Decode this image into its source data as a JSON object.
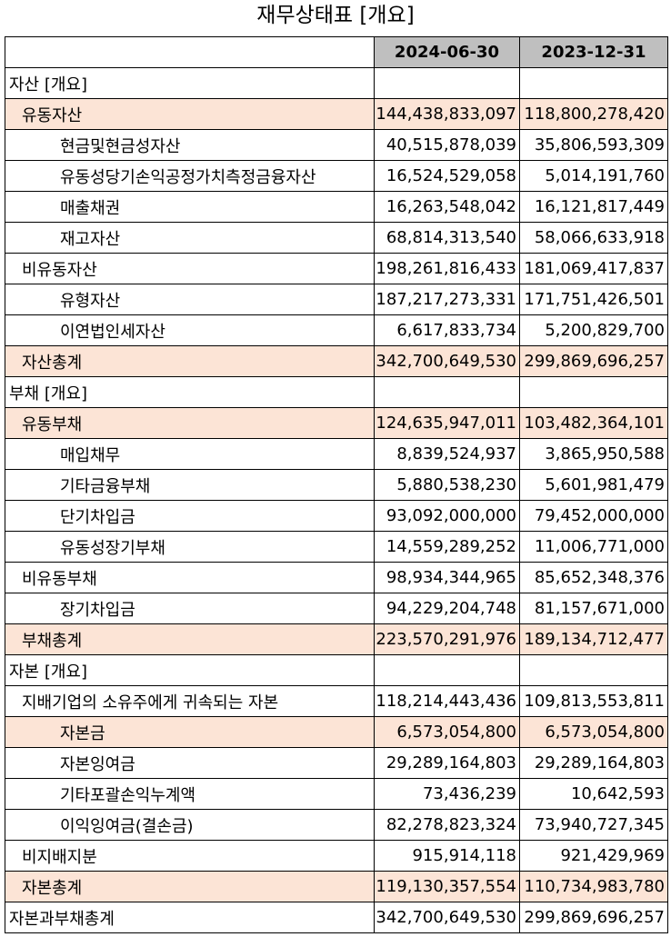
{
  "title": "재무상태표 [개요]",
  "columns": [
    "2024-06-30",
    "2023-12-31"
  ],
  "rows": [
    {
      "label": "자산 [개요]",
      "indent": 0,
      "highlight": false,
      "values": [
        "",
        ""
      ]
    },
    {
      "label": "유동자산",
      "indent": 1,
      "highlight": true,
      "values": [
        "144,438,833,097",
        "118,800,278,420"
      ]
    },
    {
      "label": "현금및현금성자산",
      "indent": 2,
      "highlight": false,
      "values": [
        "40,515,878,039",
        "35,806,593,309"
      ]
    },
    {
      "label": "유동성당기손익공정가치측정금융자산",
      "indent": 2,
      "highlight": false,
      "values": [
        "16,524,529,058",
        "5,014,191,760"
      ]
    },
    {
      "label": "매출채권",
      "indent": 2,
      "highlight": false,
      "values": [
        "16,263,548,042",
        "16,121,817,449"
      ]
    },
    {
      "label": "재고자산",
      "indent": 2,
      "highlight": false,
      "values": [
        "68,814,313,540",
        "58,066,633,918"
      ]
    },
    {
      "label": "비유동자산",
      "indent": 1,
      "highlight": false,
      "values": [
        "198,261,816,433",
        "181,069,417,837"
      ]
    },
    {
      "label": "유형자산",
      "indent": 2,
      "highlight": false,
      "values": [
        "187,217,273,331",
        "171,751,426,501"
      ]
    },
    {
      "label": "이연법인세자산",
      "indent": 2,
      "highlight": false,
      "values": [
        "6,617,833,734",
        "5,200,829,700"
      ]
    },
    {
      "label": "자산총계",
      "indent": 1,
      "highlight": true,
      "values": [
        "342,700,649,530",
        "299,869,696,257"
      ]
    },
    {
      "label": "부채 [개요]",
      "indent": 0,
      "highlight": false,
      "values": [
        "",
        ""
      ]
    },
    {
      "label": "유동부채",
      "indent": 1,
      "highlight": true,
      "values": [
        "124,635,947,011",
        "103,482,364,101"
      ]
    },
    {
      "label": "매입채무",
      "indent": 2,
      "highlight": false,
      "values": [
        "8,839,524,937",
        "3,865,950,588"
      ]
    },
    {
      "label": "기타금융부채",
      "indent": 2,
      "highlight": false,
      "values": [
        "5,880,538,230",
        "5,601,981,479"
      ]
    },
    {
      "label": "단기차입금",
      "indent": 2,
      "highlight": false,
      "values": [
        "93,092,000,000",
        "79,452,000,000"
      ]
    },
    {
      "label": "유동성장기부채",
      "indent": 2,
      "highlight": false,
      "values": [
        "14,559,289,252",
        "11,006,771,000"
      ]
    },
    {
      "label": "비유동부채",
      "indent": 1,
      "highlight": false,
      "values": [
        "98,934,344,965",
        "85,652,348,376"
      ]
    },
    {
      "label": "장기차입금",
      "indent": 2,
      "highlight": false,
      "values": [
        "94,229,204,748",
        "81,157,671,000"
      ]
    },
    {
      "label": "부채총계",
      "indent": 1,
      "highlight": true,
      "values": [
        "223,570,291,976",
        "189,134,712,477"
      ]
    },
    {
      "label": "자본 [개요]",
      "indent": 0,
      "highlight": false,
      "values": [
        "",
        ""
      ]
    },
    {
      "label": "지배기업의 소유주에게 귀속되는 자본",
      "indent": 1,
      "highlight": false,
      "values": [
        "118,214,443,436",
        "109,813,553,811"
      ]
    },
    {
      "label": "자본금",
      "indent": 2,
      "highlight": true,
      "values": [
        "6,573,054,800",
        "6,573,054,800"
      ]
    },
    {
      "label": "자본잉여금",
      "indent": 2,
      "highlight": false,
      "values": [
        "29,289,164,803",
        "29,289,164,803"
      ]
    },
    {
      "label": "기타포괄손익누계액",
      "indent": 2,
      "highlight": false,
      "values": [
        "73,436,239",
        "10,642,593"
      ]
    },
    {
      "label": "이익잉여금(결손금)",
      "indent": 2,
      "highlight": false,
      "values": [
        "82,278,823,324",
        "73,940,727,345"
      ]
    },
    {
      "label": "비지배지분",
      "indent": 1,
      "highlight": false,
      "values": [
        "915,914,118",
        "921,429,969"
      ]
    },
    {
      "label": "자본총계",
      "indent": 1,
      "highlight": true,
      "values": [
        "119,130,357,554",
        "110,734,983,780"
      ]
    },
    {
      "label": "자본과부채총계",
      "indent": 0,
      "highlight": false,
      "values": [
        "342,700,649,530",
        "299,869,696,257"
      ]
    }
  ]
}
